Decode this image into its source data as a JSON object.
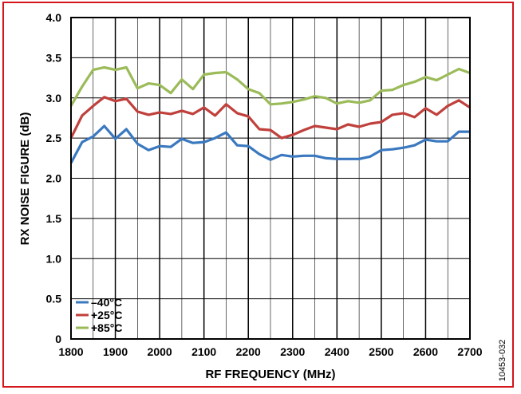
{
  "figure_id": "10453-032",
  "chart_data": {
    "type": "line",
    "xlabel": "RF FREQUENCY (MHz)",
    "ylabel": "RX NOISE FIGURE (dB)",
    "xlim": [
      1800,
      2700
    ],
    "ylim": [
      0,
      4.0
    ],
    "x_ticks": [
      1800,
      1900,
      2000,
      2100,
      2200,
      2300,
      2400,
      2500,
      2600,
      2700
    ],
    "y_ticks": [
      "0",
      "0.5",
      "1.0",
      "1.5",
      "2.0",
      "2.5",
      "3.0",
      "3.5",
      "4.0"
    ],
    "y_tick_values": [
      0,
      0.5,
      1.0,
      1.5,
      2.0,
      2.5,
      3.0,
      3.5,
      4.0
    ],
    "x_minor_grid": [
      1850,
      1950,
      2050,
      2150,
      2250,
      2350,
      2450,
      2550,
      2650
    ],
    "grid": true,
    "legend_position": "bottom-left",
    "x": [
      1800,
      1825,
      1850,
      1875,
      1900,
      1925,
      1950,
      1975,
      2000,
      2025,
      2050,
      2075,
      2100,
      2125,
      2150,
      2175,
      2200,
      2225,
      2250,
      2275,
      2300,
      2325,
      2350,
      2375,
      2400,
      2425,
      2450,
      2475,
      2500,
      2525,
      2550,
      2575,
      2600,
      2625,
      2650,
      2675,
      2700
    ],
    "series": [
      {
        "name": "–40°C",
        "color": "#3a78bf",
        "values": [
          2.19,
          2.45,
          2.52,
          2.65,
          2.49,
          2.61,
          2.43,
          2.35,
          2.4,
          2.39,
          2.49,
          2.44,
          2.45,
          2.5,
          2.57,
          2.41,
          2.4,
          2.3,
          2.23,
          2.29,
          2.27,
          2.28,
          2.28,
          2.25,
          2.24,
          2.24,
          2.24,
          2.27,
          2.35,
          2.36,
          2.38,
          2.41,
          2.48,
          2.46,
          2.46,
          2.58,
          2.58
        ]
      },
      {
        "name": "+25°C",
        "color": "#c0403c",
        "values": [
          2.5,
          2.78,
          2.9,
          3.01,
          2.96,
          2.99,
          2.83,
          2.79,
          2.82,
          2.8,
          2.84,
          2.8,
          2.88,
          2.78,
          2.92,
          2.81,
          2.77,
          2.61,
          2.6,
          2.5,
          2.54,
          2.6,
          2.65,
          2.63,
          2.61,
          2.67,
          2.64,
          2.68,
          2.7,
          2.79,
          2.81,
          2.76,
          2.87,
          2.79,
          2.9,
          2.97,
          2.88
        ]
      },
      {
        "name": "+85°C",
        "color": "#9bbb59",
        "values": [
          2.9,
          3.14,
          3.35,
          3.38,
          3.35,
          3.38,
          3.12,
          3.18,
          3.16,
          3.06,
          3.23,
          3.11,
          3.29,
          3.31,
          3.32,
          3.23,
          3.11,
          3.06,
          2.92,
          2.93,
          2.95,
          2.98,
          3.02,
          3.0,
          2.93,
          2.96,
          2.94,
          2.97,
          3.09,
          3.1,
          3.16,
          3.2,
          3.26,
          3.22,
          3.29,
          3.36,
          3.31
        ]
      }
    ]
  }
}
